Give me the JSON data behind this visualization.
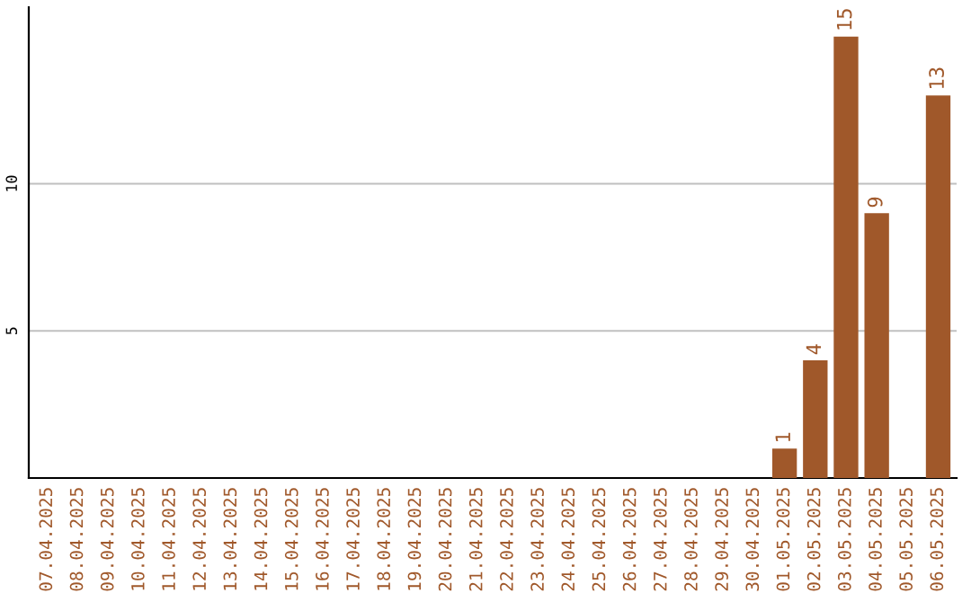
{
  "chart_data": {
    "type": "bar",
    "categories": [
      "07.04.2025",
      "08.04.2025",
      "09.04.2025",
      "10.04.2025",
      "11.04.2025",
      "12.04.2025",
      "13.04.2025",
      "14.04.2025",
      "15.04.2025",
      "16.04.2025",
      "17.04.2025",
      "18.04.2025",
      "19.04.2025",
      "20.04.2025",
      "21.04.2025",
      "22.04.2025",
      "23.04.2025",
      "24.04.2025",
      "25.04.2025",
      "26.04.2025",
      "27.04.2025",
      "28.04.2025",
      "29.04.2025",
      "30.04.2025",
      "01.05.2025",
      "02.05.2025",
      "03.05.2025",
      "04.05.2025",
      "05.05.2025",
      "06.05.2025"
    ],
    "values": [
      0,
      0,
      0,
      0,
      0,
      0,
      0,
      0,
      0,
      0,
      0,
      0,
      0,
      0,
      0,
      0,
      0,
      0,
      0,
      0,
      0,
      0,
      0,
      0,
      1,
      4,
      15,
      9,
      0,
      13
    ],
    "value_labels": [
      null,
      null,
      null,
      null,
      null,
      null,
      null,
      null,
      null,
      null,
      null,
      null,
      null,
      null,
      null,
      null,
      null,
      null,
      null,
      null,
      null,
      null,
      null,
      null,
      "1",
      "4",
      "15",
      "9",
      null,
      "13"
    ],
    "color": "#a0582a",
    "ylim": [
      0,
      16
    ],
    "yticks": [
      5,
      10
    ],
    "grid": "y",
    "legend": false
  }
}
